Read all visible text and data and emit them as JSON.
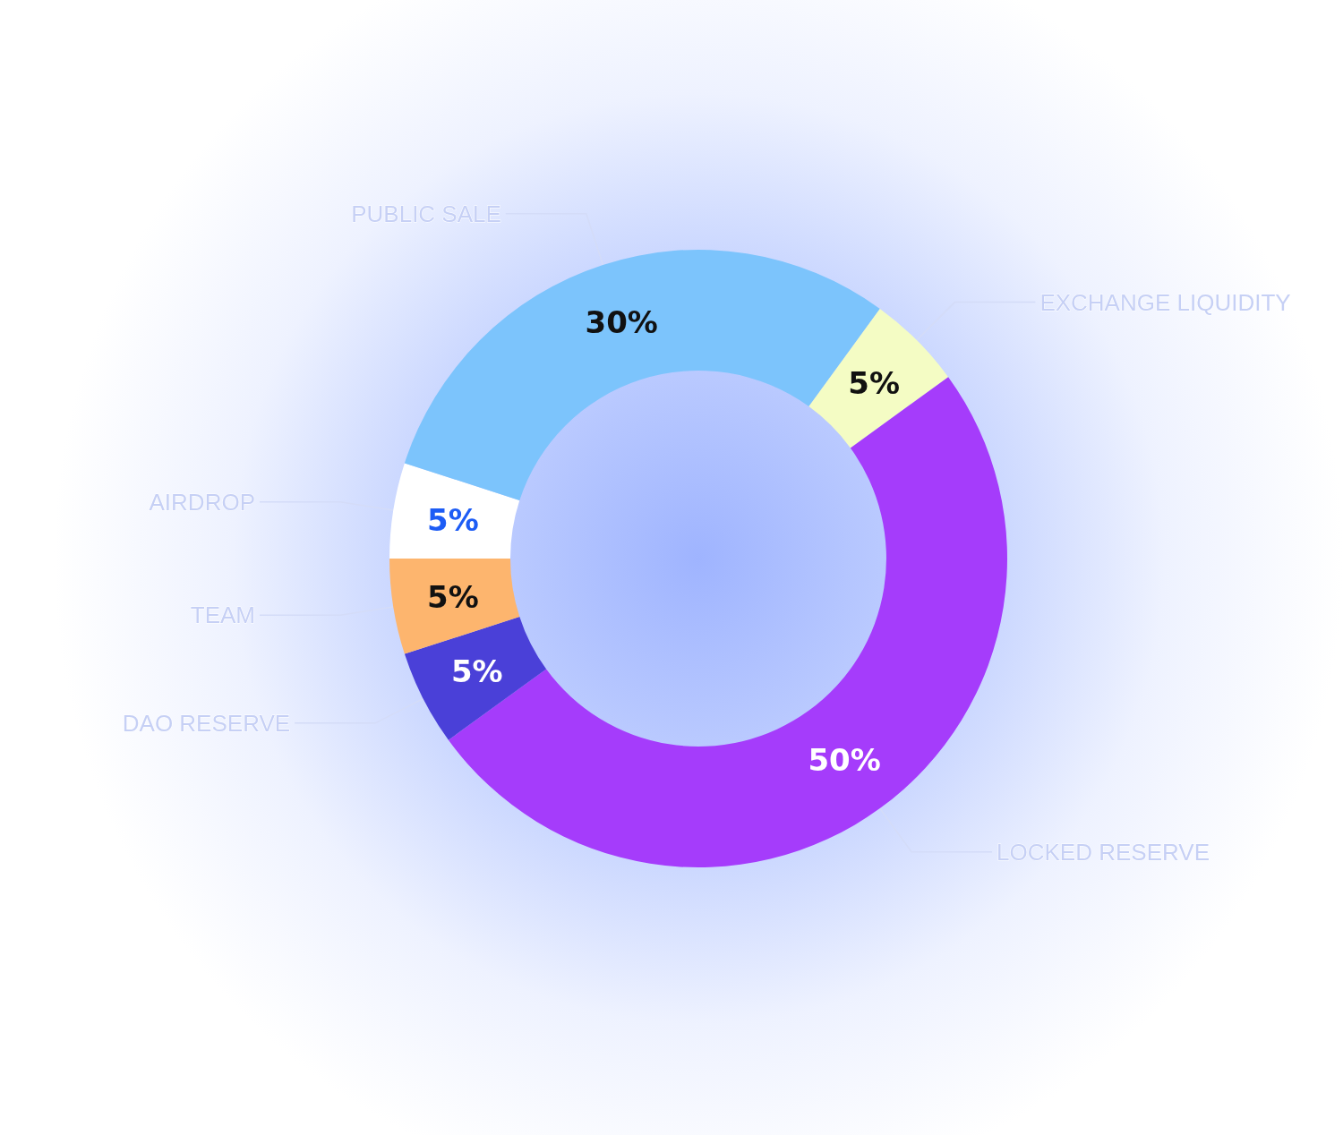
{
  "chart_data": {
    "type": "donut",
    "categories": [
      "AIRDROP",
      "PUBLIC SALE",
      "EXCHANGE LIQUIDITY",
      "LOCKED RESERVE",
      "DAO RESERVE",
      "TEAM"
    ],
    "values": [
      5,
      30,
      5,
      50,
      5,
      5
    ],
    "colors": [
      "#ffffff",
      "#7cc4fc",
      "#f4fcc4",
      "#a53cfb",
      "#4a40d8",
      "#fdb56e"
    ],
    "value_labels": [
      "5%",
      "30%",
      "5%",
      "50%",
      "5%",
      "5%"
    ],
    "legend": false
  }
}
